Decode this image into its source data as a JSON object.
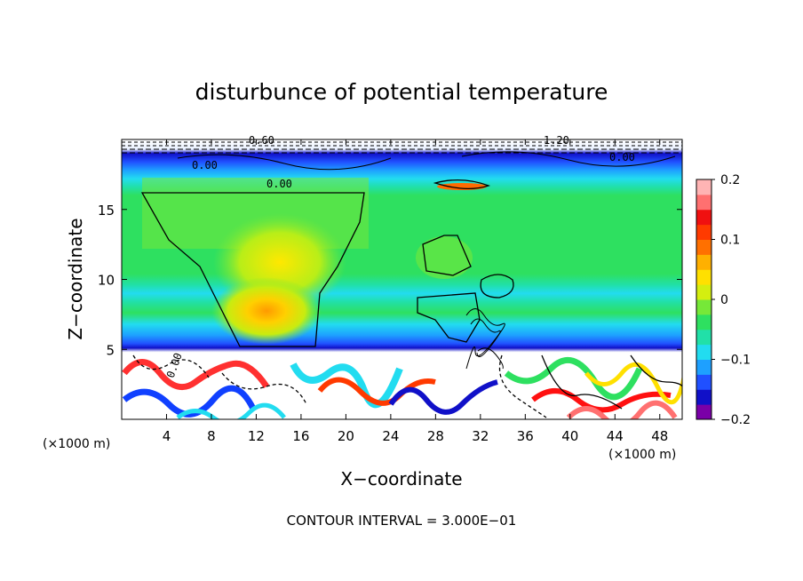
{
  "chart_data": {
    "type": "heatmap",
    "title": "disturbunce of potential temperature",
    "xlabel": "X−coordinate",
    "ylabel": "Z−coordinate",
    "x_unit": "(×1000 m)",
    "y_unit": "(×1000 m)",
    "x_ticks": [
      4,
      8,
      12,
      16,
      20,
      24,
      28,
      32,
      36,
      40,
      44,
      48
    ],
    "x_tick_labels": [
      "4",
      "8",
      "12",
      "16",
      "20",
      "24",
      "28",
      "32",
      "36",
      "40",
      "44",
      "48"
    ],
    "y_ticks": [
      5,
      10,
      15
    ],
    "y_tick_labels": [
      "5",
      "10",
      "15"
    ],
    "xlim": [
      0,
      50
    ],
    "ylim": [
      0,
      20
    ],
    "colorbar": {
      "range": [
        -0.2,
        0.2
      ],
      "tick_values": [
        -0.2,
        -0.1,
        0,
        0.1,
        0.2
      ],
      "tick_labels": [
        "−0.2",
        "−0.1",
        "0",
        "0.1",
        "0.2"
      ],
      "colors": [
        "#7a00a8",
        "#1010c8",
        "#2050ff",
        "#1ea0ff",
        "#22dcf0",
        "#21e0a8",
        "#2ee060",
        "#76e838",
        "#d4ee10",
        "#ffe000",
        "#ffb000",
        "#ff7000",
        "#ff3a00",
        "#f01010",
        "#ff7070",
        "#ffb4b4"
      ]
    },
    "contour_labels": [
      "0.60",
      "1.20",
      "0.00",
      "0.00",
      "0.00",
      "0.00"
    ],
    "contour_interval_note": "CONTOUR INTERVAL = 3.000E−01"
  }
}
